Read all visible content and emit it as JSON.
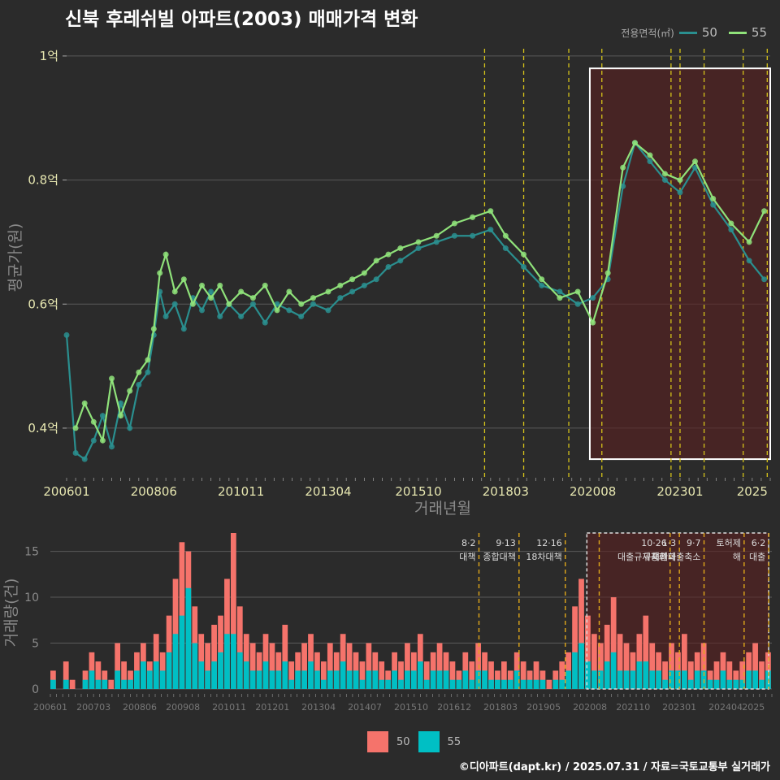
{
  "title": "신북 후레쉬빌 아파트(2003) 매매가격 변화",
  "credit": "©디아파트(dapt.kr) / 2025.07.31 / 자료=국토교통부 실거래가",
  "colors": {
    "background": "#2b2b2b",
    "series_50": "#2a8f8f",
    "series_55": "#8fe27a",
    "bar_50": "#f5736b",
    "bar_55": "#00bfc4",
    "policy_line": "#d4c21a",
    "highlight": "#5a2020"
  },
  "chart_data": [
    {
      "type": "line",
      "title": "신북 후레쉬빌 아파트(2003) 매매가격 변화",
      "xlabel": "거래년월",
      "ylabel": "평균가(원)",
      "legend_title": "전용면적(㎡)",
      "legend_position": "top-right",
      "x_range": [
        "2006-01",
        "2025-07"
      ],
      "x_ticks": [
        "200601",
        "200806",
        "201011",
        "201304",
        "201510",
        "201803",
        "202008",
        "202301",
        "2025"
      ],
      "y_ticks": [
        "1억",
        "0.8억",
        "0.6억",
        "0.4억"
      ],
      "y_tick_values": [
        1.0,
        0.8,
        0.6,
        0.4
      ],
      "ylim": [
        0.32,
        1.03
      ],
      "grid": true,
      "policy_dates": [
        "2017-08",
        "2018-09",
        "2019-12",
        "2020-11",
        "2022-10",
        "2023-01",
        "2023-09",
        "2024-10",
        "2025-06"
      ],
      "highlight_range": [
        "2020-07",
        "2025-07"
      ],
      "series": [
        {
          "name": "50",
          "points": [
            [
              "2006-01",
              0.55
            ],
            [
              "2006-04",
              0.36
            ],
            [
              "2006-07",
              0.35
            ],
            [
              "2006-10",
              0.38
            ],
            [
              "2007-01",
              0.42
            ],
            [
              "2007-04",
              0.37
            ],
            [
              "2007-07",
              0.44
            ],
            [
              "2007-10",
              0.4
            ],
            [
              "2008-01",
              0.47
            ],
            [
              "2008-04",
              0.49
            ],
            [
              "2008-06",
              0.55
            ],
            [
              "2008-08",
              0.62
            ],
            [
              "2008-10",
              0.58
            ],
            [
              "2009-01",
              0.6
            ],
            [
              "2009-04",
              0.56
            ],
            [
              "2009-07",
              0.61
            ],
            [
              "2009-10",
              0.59
            ],
            [
              "2010-01",
              0.62
            ],
            [
              "2010-04",
              0.58
            ],
            [
              "2010-07",
              0.6
            ],
            [
              "2010-11",
              0.58
            ],
            [
              "2011-03",
              0.6
            ],
            [
              "2011-07",
              0.57
            ],
            [
              "2011-11",
              0.6
            ],
            [
              "2012-03",
              0.59
            ],
            [
              "2012-07",
              0.58
            ],
            [
              "2012-11",
              0.6
            ],
            [
              "2013-04",
              0.59
            ],
            [
              "2013-08",
              0.61
            ],
            [
              "2013-12",
              0.62
            ],
            [
              "2014-04",
              0.63
            ],
            [
              "2014-08",
              0.64
            ],
            [
              "2014-12",
              0.66
            ],
            [
              "2015-04",
              0.67
            ],
            [
              "2015-10",
              0.69
            ],
            [
              "2016-04",
              0.7
            ],
            [
              "2016-10",
              0.71
            ],
            [
              "2017-04",
              0.71
            ],
            [
              "2017-10",
              0.72
            ],
            [
              "2018-03",
              0.69
            ],
            [
              "2018-09",
              0.66
            ],
            [
              "2019-03",
              0.63
            ],
            [
              "2019-09",
              0.62
            ],
            [
              "2020-03",
              0.6
            ],
            [
              "2020-08",
              0.61
            ],
            [
              "2021-01",
              0.64
            ],
            [
              "2021-06",
              0.79
            ],
            [
              "2021-10",
              0.86
            ],
            [
              "2022-03",
              0.83
            ],
            [
              "2022-08",
              0.8
            ],
            [
              "2023-01",
              0.78
            ],
            [
              "2023-06",
              0.82
            ],
            [
              "2023-12",
              0.76
            ],
            [
              "2024-06",
              0.72
            ],
            [
              "2024-12",
              0.67
            ],
            [
              "2025-05",
              0.64
            ]
          ]
        },
        {
          "name": "55",
          "points": [
            [
              "2006-04",
              0.4
            ],
            [
              "2006-07",
              0.44
            ],
            [
              "2006-10",
              0.41
            ],
            [
              "2007-01",
              0.38
            ],
            [
              "2007-04",
              0.48
            ],
            [
              "2007-07",
              0.42
            ],
            [
              "2007-10",
              0.46
            ],
            [
              "2008-01",
              0.49
            ],
            [
              "2008-04",
              0.51
            ],
            [
              "2008-06",
              0.56
            ],
            [
              "2008-08",
              0.65
            ],
            [
              "2008-10",
              0.68
            ],
            [
              "2009-01",
              0.62
            ],
            [
              "2009-04",
              0.64
            ],
            [
              "2009-07",
              0.6
            ],
            [
              "2009-10",
              0.63
            ],
            [
              "2010-01",
              0.61
            ],
            [
              "2010-04",
              0.63
            ],
            [
              "2010-07",
              0.6
            ],
            [
              "2010-11",
              0.62
            ],
            [
              "2011-03",
              0.61
            ],
            [
              "2011-07",
              0.63
            ],
            [
              "2011-11",
              0.59
            ],
            [
              "2012-03",
              0.62
            ],
            [
              "2012-07",
              0.6
            ],
            [
              "2012-11",
              0.61
            ],
            [
              "2013-04",
              0.62
            ],
            [
              "2013-08",
              0.63
            ],
            [
              "2013-12",
              0.64
            ],
            [
              "2014-04",
              0.65
            ],
            [
              "2014-08",
              0.67
            ],
            [
              "2014-12",
              0.68
            ],
            [
              "2015-04",
              0.69
            ],
            [
              "2015-10",
              0.7
            ],
            [
              "2016-04",
              0.71
            ],
            [
              "2016-10",
              0.73
            ],
            [
              "2017-04",
              0.74
            ],
            [
              "2017-10",
              0.75
            ],
            [
              "2018-03",
              0.71
            ],
            [
              "2018-09",
              0.68
            ],
            [
              "2019-03",
              0.64
            ],
            [
              "2019-09",
              0.61
            ],
            [
              "2020-03",
              0.62
            ],
            [
              "2020-08",
              0.57
            ],
            [
              "2021-01",
              0.65
            ],
            [
              "2021-06",
              0.82
            ],
            [
              "2021-10",
              0.86
            ],
            [
              "2022-03",
              0.84
            ],
            [
              "2022-08",
              0.81
            ],
            [
              "2023-01",
              0.8
            ],
            [
              "2023-06",
              0.83
            ],
            [
              "2023-12",
              0.77
            ],
            [
              "2024-06",
              0.73
            ],
            [
              "2024-12",
              0.7
            ],
            [
              "2025-05",
              0.75
            ]
          ]
        }
      ]
    },
    {
      "type": "bar",
      "ylabel": "거래량(건)",
      "legend_position": "bottom",
      "x_range": [
        "2006-01",
        "2025-07"
      ],
      "x_ticks": [
        "200601",
        "200703",
        "200806",
        "200908",
        "201011",
        "201201",
        "201304",
        "201407",
        "201510",
        "201612",
        "201803",
        "201905",
        "202008",
        "202110",
        "202301",
        "202404",
        "2025"
      ],
      "y_ticks": [
        0,
        5,
        10,
        15
      ],
      "ylim": [
        0,
        17
      ],
      "grid": true,
      "highlight_range": [
        "2020-07",
        "2025-07"
      ],
      "annotations": [
        {
          "date": "2017-08",
          "label": "8·2 대책"
        },
        {
          "date": "2018-09",
          "label": "9·13 종합대책"
        },
        {
          "date": "2019-12",
          "label": "12·16 18차대책"
        },
        {
          "date": "2020-11",
          "label": ""
        },
        {
          "date": "2022-10",
          "label": "10·26 대출규제강화"
        },
        {
          "date": "2023-01",
          "label": "1·3 규제완화"
        },
        {
          "date": "2023-09",
          "label": "9·7 특례대출축소"
        },
        {
          "date": "2024-10",
          "label": "토허제 해"
        },
        {
          "date": "2025-06",
          "label": "6·2 대출"
        }
      ],
      "series": [
        {
          "name": "50",
          "values": [
            2,
            0,
            3,
            1,
            0,
            2,
            4,
            3,
            2,
            1,
            5,
            3,
            2,
            4,
            5,
            3,
            6,
            4,
            8,
            12,
            16,
            15,
            9,
            6,
            5,
            7,
            8,
            12,
            17,
            9,
            6,
            5,
            4,
            6,
            5,
            4,
            7,
            3,
            4,
            5,
            6,
            4,
            3,
            5,
            4,
            6,
            5,
            4,
            3,
            5,
            4,
            3,
            2,
            4,
            3,
            5,
            4,
            6,
            3,
            4,
            5,
            4,
            3,
            2,
            4,
            3,
            5,
            4,
            3,
            2,
            3,
            2,
            4,
            3,
            2,
            3,
            2,
            1,
            2,
            3,
            4,
            9,
            12,
            8,
            6,
            5,
            7,
            10,
            6,
            5,
            4,
            6,
            8,
            5,
            4,
            3,
            5,
            4,
            6,
            3,
            4,
            5,
            2,
            3,
            4,
            3,
            2,
            3,
            4,
            5,
            3,
            4
          ]
        },
        {
          "name": "55",
          "values": [
            1,
            0,
            1,
            0,
            0,
            1,
            2,
            1,
            1,
            0,
            2,
            1,
            1,
            2,
            3,
            2,
            3,
            2,
            4,
            6,
            8,
            11,
            5,
            3,
            2,
            3,
            4,
            6,
            6,
            4,
            3,
            2,
            2,
            3,
            2,
            2,
            3,
            1,
            2,
            2,
            3,
            2,
            1,
            2,
            2,
            3,
            2,
            2,
            1,
            2,
            2,
            1,
            1,
            2,
            1,
            2,
            2,
            3,
            1,
            2,
            2,
            2,
            1,
            1,
            2,
            1,
            2,
            2,
            1,
            1,
            1,
            1,
            2,
            1,
            1,
            1,
            1,
            0,
            1,
            1,
            2,
            4,
            5,
            3,
            2,
            2,
            3,
            4,
            2,
            2,
            2,
            3,
            3,
            2,
            2,
            1,
            2,
            2,
            2,
            1,
            2,
            2,
            1,
            1,
            2,
            1,
            1,
            1,
            2,
            2,
            1,
            2
          ]
        }
      ]
    }
  ],
  "legend_top": {
    "title": "전용면적(㎡)",
    "items": [
      "50",
      "55"
    ]
  },
  "legend_bottom": {
    "items": [
      "50",
      "55"
    ]
  }
}
